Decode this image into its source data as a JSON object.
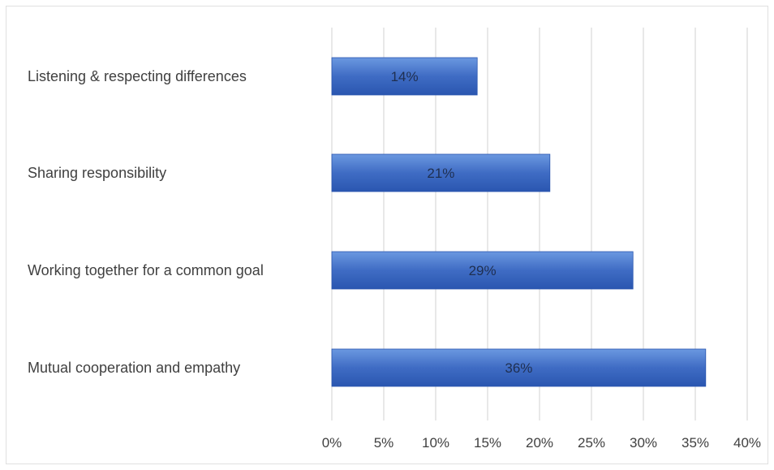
{
  "chart_data": {
    "type": "bar",
    "orientation": "horizontal",
    "categories": [
      "Listening & respecting differences",
      "Sharing responsibility",
      "Working together for a common goal",
      "Mutual cooperation and empathy"
    ],
    "values": [
      14,
      21,
      29,
      36
    ],
    "data_labels": [
      "14%",
      "21%",
      "29%",
      "36%"
    ],
    "x_ticks": [
      "0%",
      "5%",
      "10%",
      "15%",
      "20%",
      "25%",
      "30%",
      "35%",
      "40%"
    ],
    "xlim": [
      0,
      40
    ],
    "grid": true,
    "colors": {
      "bar_light": "#5b8ad6",
      "bar_dark": "#2a56b0",
      "grid": "#d9d9d9"
    }
  }
}
